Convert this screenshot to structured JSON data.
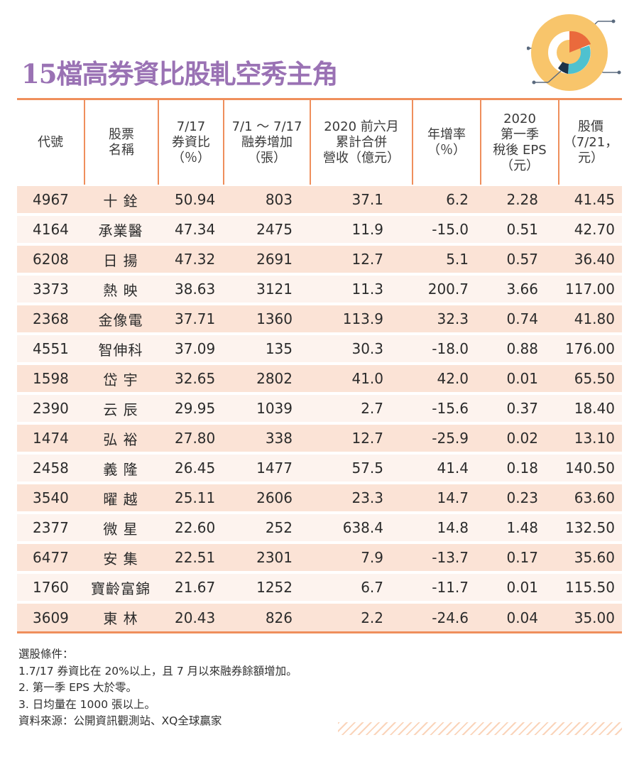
{
  "title": "15檔高券資比股軋空秀主角",
  "colors": {
    "title": "#9a72b4",
    "accent_line": "#ef8f5c",
    "row_dark": "#fbe3d6",
    "row_light": "#fdf3ee"
  },
  "decoration": {
    "icon": "donut-chart-icon"
  },
  "table": {
    "headers": [
      "代號",
      "股票\n名稱",
      "7/17\n券資比\n（％）",
      "7/1 ～ 7/17\n融券增加\n（張）",
      "2020 前六月\n累計合併\n營收（億元）",
      "年增率\n（％）",
      "2020\n第一季\n稅後 EPS\n（元）",
      "股價\n（7/21，\n元）"
    ],
    "rows": [
      [
        "4967",
        "十 銓",
        "50.94",
        "803",
        "37.1",
        "6.2",
        "2.28",
        "41.45"
      ],
      [
        "4164",
        "承業醫",
        "47.34",
        "2475",
        "11.9",
        "-15.0",
        "0.51",
        "42.70"
      ],
      [
        "6208",
        "日 揚",
        "47.32",
        "2691",
        "12.7",
        "5.1",
        "0.57",
        "36.40"
      ],
      [
        "3373",
        "熱 映",
        "38.63",
        "3121",
        "11.3",
        "200.7",
        "3.66",
        "117.00"
      ],
      [
        "2368",
        "金像電",
        "37.71",
        "1360",
        "113.9",
        "32.3",
        "0.74",
        "41.80"
      ],
      [
        "4551",
        "智伸科",
        "37.09",
        "135",
        "30.3",
        "-18.0",
        "0.88",
        "176.00"
      ],
      [
        "1598",
        "岱 宇",
        "32.65",
        "2802",
        "41.0",
        "42.0",
        "0.01",
        "65.50"
      ],
      [
        "2390",
        "云 辰",
        "29.95",
        "1039",
        "2.7",
        "-15.6",
        "0.37",
        "18.40"
      ],
      [
        "1474",
        "弘 裕",
        "27.80",
        "338",
        "12.7",
        "-25.9",
        "0.02",
        "13.10"
      ],
      [
        "2458",
        "義 隆",
        "26.45",
        "1477",
        "57.5",
        "41.4",
        "0.18",
        "140.50"
      ],
      [
        "3540",
        "曜 越",
        "25.11",
        "2606",
        "23.3",
        "14.7",
        "0.23",
        "63.60"
      ],
      [
        "2377",
        "微 星",
        "22.60",
        "252",
        "638.4",
        "14.8",
        "1.48",
        "132.50"
      ],
      [
        "6477",
        "安 集",
        "22.51",
        "2301",
        "7.9",
        "-13.7",
        "0.17",
        "35.60"
      ],
      [
        "1760",
        "寶齡富錦",
        "21.67",
        "1252",
        "6.7",
        "-11.7",
        "0.01",
        "115.50"
      ],
      [
        "3609",
        "東 林",
        "20.43",
        "826",
        "2.2",
        "-24.6",
        "0.04",
        "35.00"
      ]
    ]
  },
  "notes": {
    "heading": "選股條件：",
    "items": [
      "1.7/17 券資比在 20%以上，且 7 月以來融券餘額增加。",
      "2. 第一季 EPS 大於零。",
      "3. 日均量在 1000 張以上。"
    ],
    "source": "資料來源：公開資訊觀測站、XQ全球贏家"
  }
}
